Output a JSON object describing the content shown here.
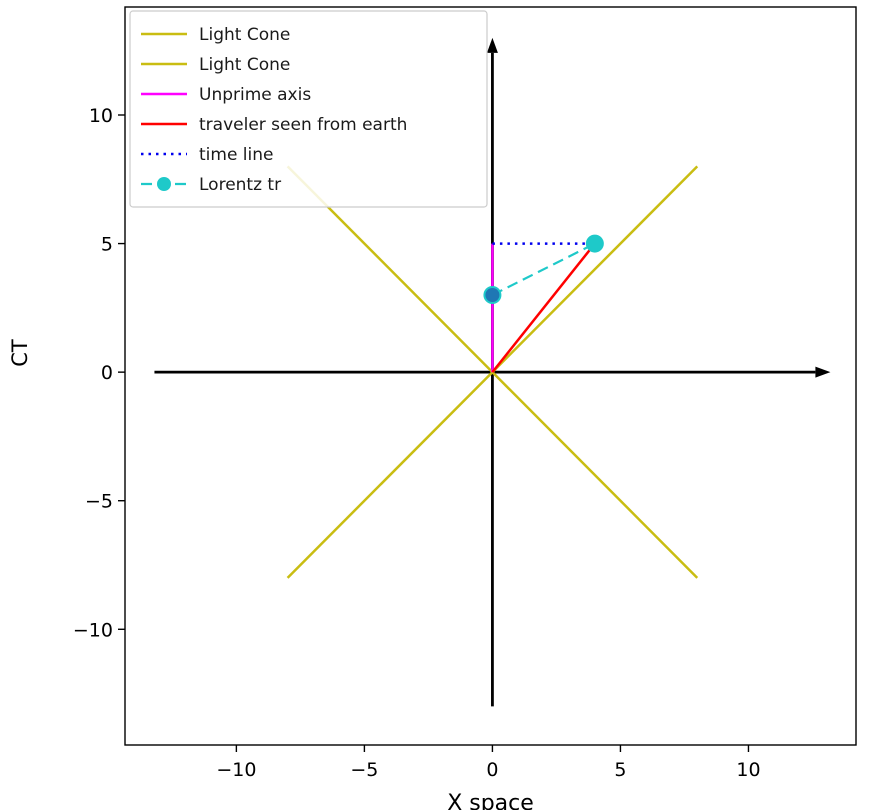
{
  "chart_data": {
    "type": "line",
    "title": "",
    "xlabel": "X space",
    "ylabel": "CT",
    "xlim": [
      -14.35,
      14.2
    ],
    "ylim": [
      -14.5,
      14.2
    ],
    "xticks": [
      -10,
      -5,
      0,
      5,
      10
    ],
    "yticks": [
      -10,
      -5,
      0,
      5,
      10
    ],
    "grid": false,
    "legend_position": "upper left",
    "background": "#ffffff",
    "axes_lines": [
      {
        "name": "ct-axis-arrow",
        "from": [
          0,
          -13
        ],
        "to": [
          0,
          13
        ],
        "color": "#000000",
        "width": 2.8,
        "arrow": true
      },
      {
        "name": "x-axis-arrow",
        "from": [
          -13.2,
          0
        ],
        "to": [
          13.2,
          0
        ],
        "color": "#000000",
        "width": 2.8,
        "arrow": true
      }
    ],
    "series": [
      {
        "name": "Light Cone",
        "color": "#c9bd12",
        "style": "solid",
        "width": 2.5,
        "points": [
          [
            -8,
            -8
          ],
          [
            8,
            8
          ]
        ]
      },
      {
        "name": "Light Cone",
        "color": "#c9bd12",
        "style": "solid",
        "width": 2.5,
        "points": [
          [
            -8,
            8
          ],
          [
            8,
            -8
          ]
        ]
      },
      {
        "name": "Unprime axis",
        "color": "#ff00ff",
        "style": "solid",
        "width": 2.5,
        "points": [
          [
            0,
            0
          ],
          [
            0,
            5
          ]
        ]
      },
      {
        "name": "traveler seen from earth",
        "color": "#ff0000",
        "style": "solid",
        "width": 2.5,
        "points": [
          [
            0,
            0
          ],
          [
            4,
            5
          ]
        ]
      },
      {
        "name": "time line",
        "color": "#0000ee",
        "style": "dotted",
        "width": 2.5,
        "points": [
          [
            0,
            5
          ],
          [
            4,
            5
          ]
        ]
      },
      {
        "name": "Lorentz tr",
        "color": "#1ec9c9",
        "style": "dashed",
        "width": 2.2,
        "marker": "circle",
        "marker_size": 9,
        "points": [
          [
            0,
            3
          ],
          [
            4,
            5
          ]
        ]
      },
      {
        "name": "blue-point",
        "color": "#1f77b4",
        "style": "none",
        "marker": "circle",
        "marker_size": 7,
        "points": [
          [
            0,
            3
          ]
        ],
        "legend": false
      }
    ]
  }
}
